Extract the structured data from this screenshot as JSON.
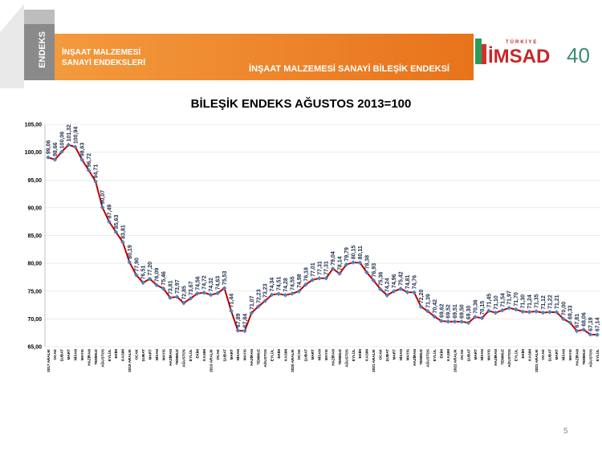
{
  "header": {
    "badge": "ENDEKS",
    "left_title": [
      "İNŞAAT MALZEMESİ",
      "SANAYİ ENDEKSLERİ"
    ],
    "title": "İNŞAAT MALZEMESİ SANAYİ BİLEŞİK ENDEKSİ",
    "logo_top": "TÜRKİYE",
    "logo": "İMSAD",
    "logo_year": "40"
  },
  "page_number": "5",
  "chart_data": {
    "type": "line",
    "title": "BİLEŞİK ENDEKS AĞUSTOS 2013=100",
    "categories": [
      "2017 ARALIK",
      "OCAK",
      "ŞUBAT",
      "MART",
      "NİSAN",
      "MAYIS",
      "HAZİRAN",
      "TEMMUZ",
      "AĞUSTOS",
      "EYLÜL",
      "EKİM",
      "KASIM",
      "2018 ARALIK",
      "OCAK",
      "ŞUBAT",
      "MART",
      "NİSAN",
      "MAYIS",
      "HAZİRAN",
      "TEMMUZ",
      "AĞUSTOS",
      "EYLÜL",
      "EKİM",
      "KASIM",
      "2019 ARALIK",
      "OCAK",
      "ŞUBAT",
      "MART",
      "NİSAN",
      "MAYIS",
      "HAZİRAN",
      "TEMMUZ",
      "AĞUSTOS",
      "EYLÜL",
      "EKİM",
      "KASIM",
      "2020 ARALIK",
      "OCAK",
      "ŞUBAT",
      "MART",
      "NİSAN",
      "MAYIS",
      "HAZİRAN",
      "TEMMUZ",
      "AĞUSTOS",
      "EYLÜL",
      "EKİM",
      "KASIM",
      "2021 ARALIK",
      "OCAK",
      "ŞUBAT",
      "MART",
      "NİSAN",
      "MAYIS",
      "HAZİRAN",
      "TEMMUZ",
      "AĞUSTOS",
      "EYLÜL",
      "EKİM",
      "KASIM",
      "2022 ARALIK",
      "OCAK",
      "ŞUBAT",
      "MART",
      "NİSAN",
      "MAYIS",
      "HAZİRAN",
      "TEMMUZ",
      "AĞUSTOS",
      "EYLÜL",
      "EKİM",
      "KASIM",
      "2023 ARALIK",
      "OCAK",
      "ŞUBAT",
      "MART",
      "NİSAN",
      "MAYIS",
      "HAZİRAN",
      "TEMMUZ",
      "AĞUSTOS",
      "EYLÜL"
    ],
    "series": [
      {
        "color": "#c00000",
        "marker_color": "#4f81bd",
        "values": [
          99.06,
          98.66,
          100.06,
          101.32,
          100.94,
          98.63,
          96.72,
          94.71,
          90.07,
          87.49,
          85.63,
          83.81,
          80.19,
          77.9,
          76.51,
          77.2,
          76.09,
          75.46,
          73.81,
          73.97,
          72.85,
          73.67,
          74.56,
          74.72,
          74.32,
          74.63,
          75.53,
          71.44,
          67.89,
          67.84,
          71.07,
          72.23,
          73.23,
          74.34,
          74.51,
          74.28,
          74.55,
          74.98,
          76.18,
          77.01,
          77.31,
          77.31,
          79.04,
          78.14,
          79.79,
          80.15,
          80.11,
          78.38,
          76.93,
          75.36,
          74.24,
          74.96,
          75.42,
          74.81,
          74.76,
          72.2,
          71.39,
          70.42,
          69.62,
          69.52,
          69.51,
          69.5,
          69.3,
          70.36,
          70.15,
          71.45,
          71.1,
          71.54,
          71.97,
          71.7,
          71.3,
          71.24,
          71.35,
          71.12,
          71.22,
          71.21,
          70,
          69.33,
          67.81,
          68.06,
          67.19,
          67.14
        ],
        "value_labels": [
          "99,06",
          "98,66",
          "100,06",
          "101,32",
          "100,94",
          "98,63",
          "96,72",
          "94,71",
          "90,07",
          "87,49",
          "85,63",
          "83,81",
          "80,19",
          "77,90",
          "76,51",
          "77,20",
          "76,09",
          "75,46",
          "73,81",
          "73,97",
          "72,85",
          "73,67",
          "74,56",
          "74,72",
          "74,32",
          "74,63",
          "75,53",
          "71,44",
          "67,89",
          "67,84",
          "71,07",
          "72,23",
          "73,23",
          "74,34",
          "74,51",
          "74,28",
          "74,55",
          "74,98",
          "76,18",
          "77,01",
          "77,31",
          "77,31",
          "79,04",
          "78,14",
          "79,79",
          "80,15",
          "80,11",
          "78,38",
          "76,93",
          "75,36",
          "74,24",
          "74,96",
          "75,42",
          "74,81",
          "74,76",
          "72,20",
          "71,39",
          "70,42",
          "69,62",
          "69,52",
          "69,51",
          "69,50",
          "69,30",
          "70,36",
          "70,15",
          "71,45",
          "71,10",
          "71,54",
          "71,97",
          "71,70",
          "71,30",
          "71,24",
          "71,35",
          "71,12",
          "71,22",
          "71,21",
          "70,00",
          "69,33",
          "67,81",
          "68,06",
          "67,19",
          "67,14"
        ]
      }
    ],
    "ylim": [
      65,
      105
    ],
    "yticks": [
      {
        "value": 65,
        "label": "65,00"
      },
      {
        "value": 70,
        "label": "70,00"
      },
      {
        "value": 75,
        "label": "75,00"
      },
      {
        "value": 80,
        "label": "80,00"
      },
      {
        "value": 85,
        "label": "85,00"
      },
      {
        "value": 90,
        "label": "90,00"
      },
      {
        "value": 95,
        "label": "95,00"
      },
      {
        "value": 100,
        "label": "100,00"
      },
      {
        "value": 105,
        "label": "105,00"
      }
    ],
    "grid": true
  }
}
